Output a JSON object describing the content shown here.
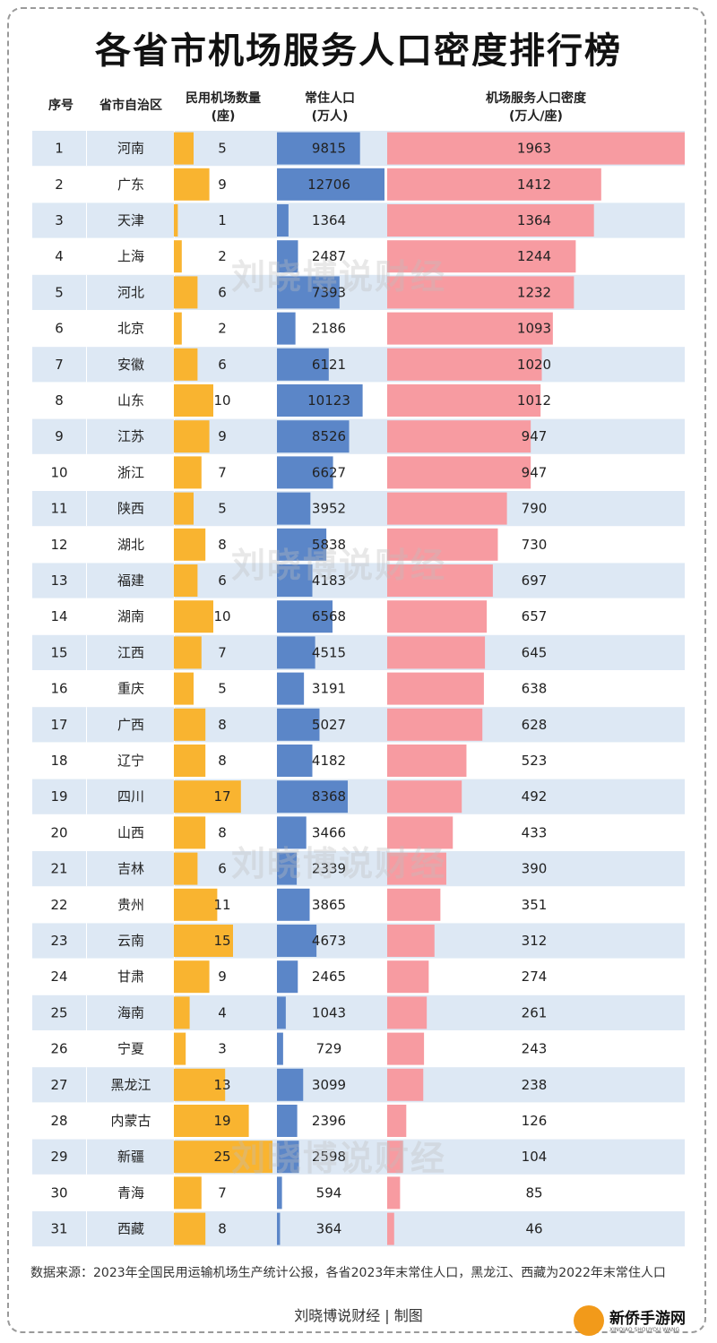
{
  "title": "各省市机场服务人口密度排行榜",
  "headers": {
    "rank": "序号",
    "province": "省市自治区",
    "airports": "民用机场数量",
    "airports_unit": "(座)",
    "population": "常住人口",
    "population_unit": "(万人)",
    "density": "机场服务人口密度",
    "density_unit": "(万人/座)"
  },
  "watermark": "刘晓博说财经",
  "note": "数据来源：2023年全国民用运输机场生产统计公报，各省2023年末常住人口，黑龙江、西藏为2022年末常住人口",
  "credit": "刘晓博说财经 | 制图",
  "logo": {
    "text": "新侨手游网",
    "sub": "XINQIAO SHOUYOU WANG"
  },
  "colors": {
    "airports": "#f9b430",
    "population": "#5b86c8",
    "density": "#f79ba1",
    "row_even": "#dde8f4",
    "row_odd": "#ffffff"
  },
  "chart_data": {
    "type": "table",
    "columns": [
      "序号",
      "省市自治区",
      "民用机场数量",
      "常住人口",
      "机场服务人口密度"
    ],
    "rows": [
      {
        "rank": 1,
        "province": "河南",
        "airports": 5,
        "population": 9815,
        "density": 1963
      },
      {
        "rank": 2,
        "province": "广东",
        "airports": 9,
        "population": 12706,
        "density": 1412
      },
      {
        "rank": 3,
        "province": "天津",
        "airports": 1,
        "population": 1364,
        "density": 1364
      },
      {
        "rank": 4,
        "province": "上海",
        "airports": 2,
        "population": 2487,
        "density": 1244
      },
      {
        "rank": 5,
        "province": "河北",
        "airports": 6,
        "population": 7393,
        "density": 1232
      },
      {
        "rank": 6,
        "province": "北京",
        "airports": 2,
        "population": 2186,
        "density": 1093
      },
      {
        "rank": 7,
        "province": "安徽",
        "airports": 6,
        "population": 6121,
        "density": 1020
      },
      {
        "rank": 8,
        "province": "山东",
        "airports": 10,
        "population": 10123,
        "density": 1012
      },
      {
        "rank": 9,
        "province": "江苏",
        "airports": 9,
        "population": 8526,
        "density": 947
      },
      {
        "rank": 10,
        "province": "浙江",
        "airports": 7,
        "population": 6627,
        "density": 947
      },
      {
        "rank": 11,
        "province": "陕西",
        "airports": 5,
        "population": 3952,
        "density": 790
      },
      {
        "rank": 12,
        "province": "湖北",
        "airports": 8,
        "population": 5838,
        "density": 730
      },
      {
        "rank": 13,
        "province": "福建",
        "airports": 6,
        "population": 4183,
        "density": 697
      },
      {
        "rank": 14,
        "province": "湖南",
        "airports": 10,
        "population": 6568,
        "density": 657
      },
      {
        "rank": 15,
        "province": "江西",
        "airports": 7,
        "population": 4515,
        "density": 645
      },
      {
        "rank": 16,
        "province": "重庆",
        "airports": 5,
        "population": 3191,
        "density": 638
      },
      {
        "rank": 17,
        "province": "广西",
        "airports": 8,
        "population": 5027,
        "density": 628
      },
      {
        "rank": 18,
        "province": "辽宁",
        "airports": 8,
        "population": 4182,
        "density": 523
      },
      {
        "rank": 19,
        "province": "四川",
        "airports": 17,
        "population": 8368,
        "density": 492
      },
      {
        "rank": 20,
        "province": "山西",
        "airports": 8,
        "population": 3466,
        "density": 433
      },
      {
        "rank": 21,
        "province": "吉林",
        "airports": 6,
        "population": 2339,
        "density": 390
      },
      {
        "rank": 22,
        "province": "贵州",
        "airports": 11,
        "population": 3865,
        "density": 351
      },
      {
        "rank": 23,
        "province": "云南",
        "airports": 15,
        "population": 4673,
        "density": 312
      },
      {
        "rank": 24,
        "province": "甘肃",
        "airports": 9,
        "population": 2465,
        "density": 274
      },
      {
        "rank": 25,
        "province": "海南",
        "airports": 4,
        "population": 1043,
        "density": 261
      },
      {
        "rank": 26,
        "province": "宁夏",
        "airports": 3,
        "population": 729,
        "density": 243
      },
      {
        "rank": 27,
        "province": "黑龙江",
        "airports": 13,
        "population": 3099,
        "density": 238
      },
      {
        "rank": 28,
        "province": "内蒙古",
        "airports": 19,
        "population": 2396,
        "density": 126
      },
      {
        "rank": 29,
        "province": "新疆",
        "airports": 25,
        "population": 2598,
        "density": 104
      },
      {
        "rank": 30,
        "province": "青海",
        "airports": 7,
        "population": 594,
        "density": 85
      },
      {
        "rank": 31,
        "province": "西藏",
        "airports": 8,
        "population": 364,
        "density": 46
      }
    ]
  }
}
